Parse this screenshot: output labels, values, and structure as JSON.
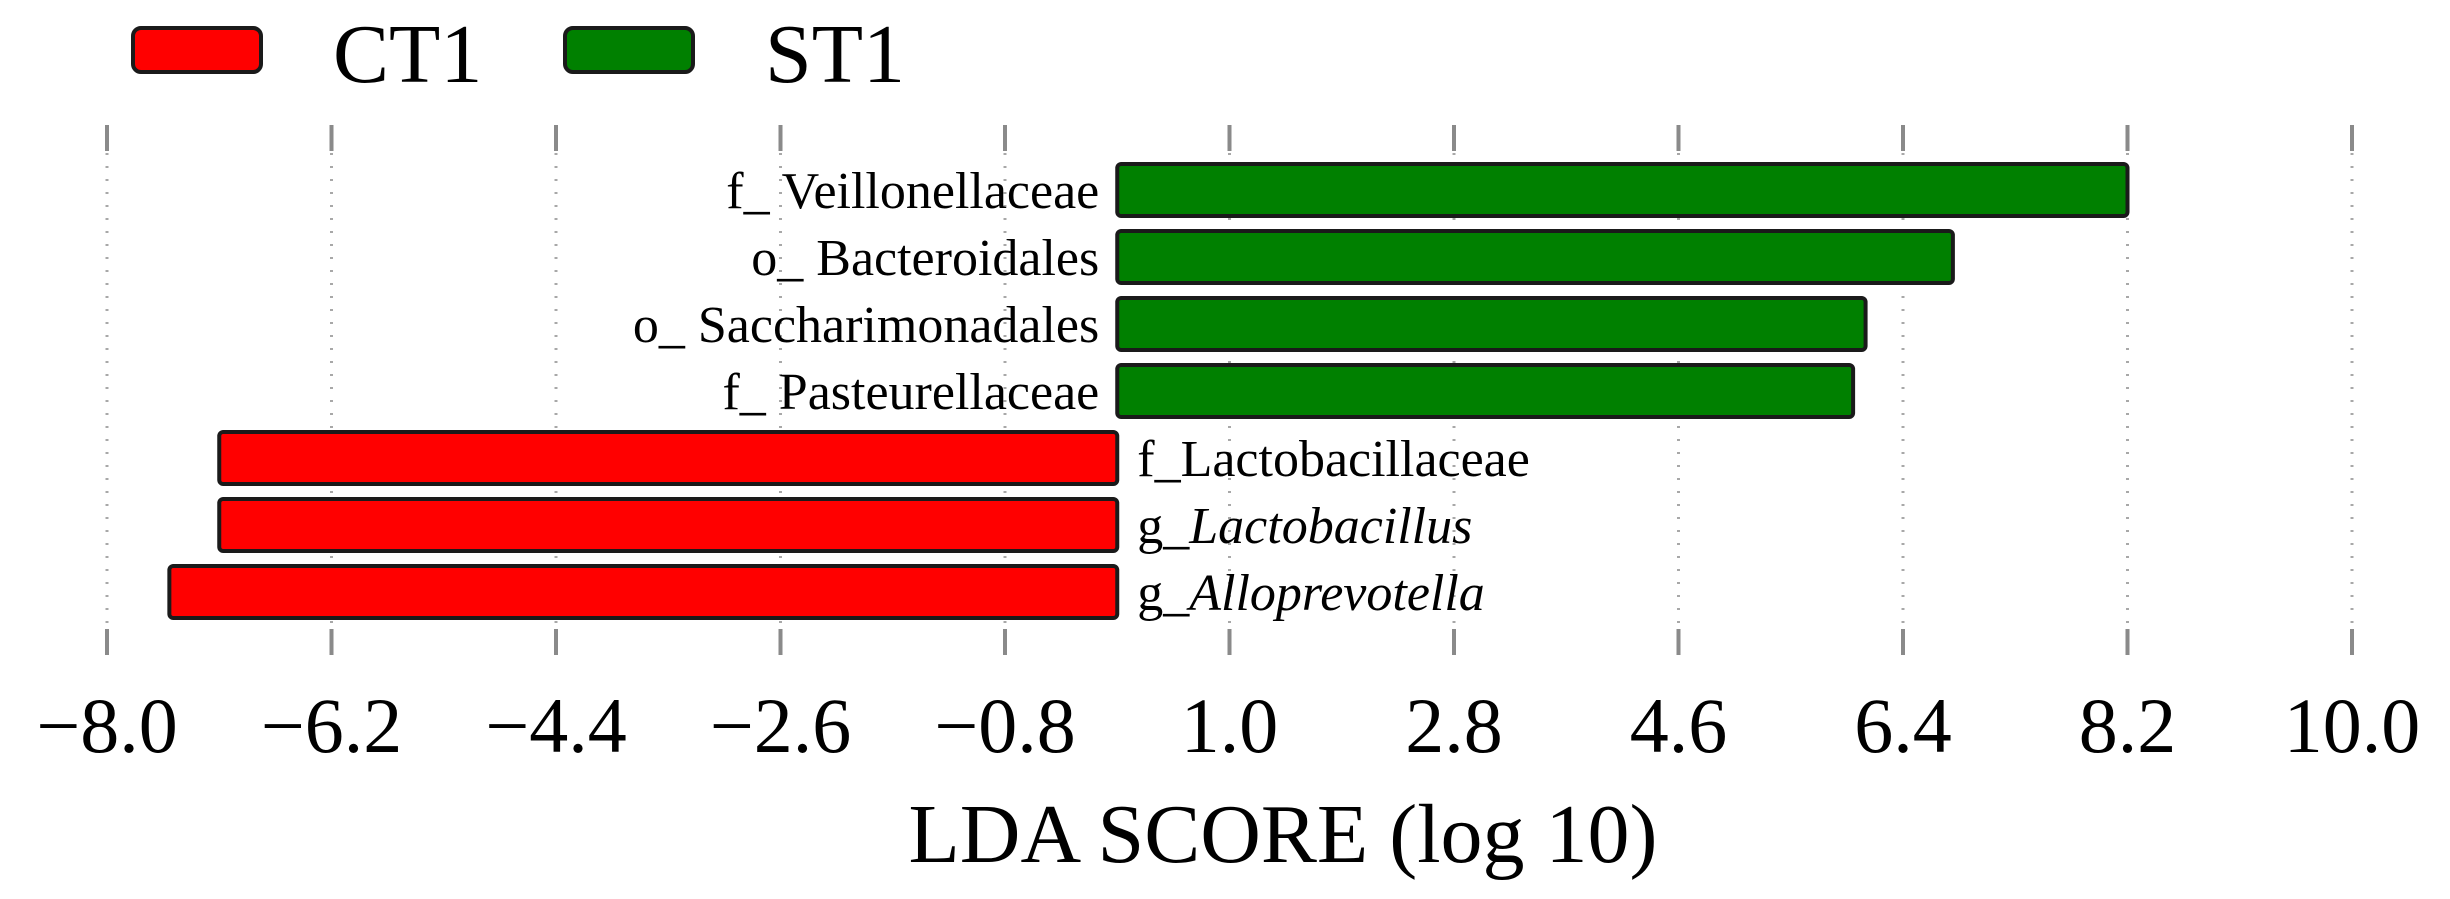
{
  "chart_data": {
    "type": "bar",
    "orientation": "horizontal",
    "xlabel": "LDA SCORE (log 10)",
    "xlim": [
      -8.0,
      10.0
    ],
    "xticks": [
      "−8.0",
      "−6.2",
      "−4.4",
      "−2.6",
      "−0.8",
      "1.0",
      "2.8",
      "4.6",
      "6.4",
      "8.2",
      "10.0"
    ],
    "xtick_values": [
      -8.0,
      -6.2,
      -4.4,
      -2.6,
      -0.8,
      1.0,
      2.8,
      4.6,
      6.4,
      8.2,
      10.0
    ],
    "baseline": 0.1,
    "grid": true,
    "legend": {
      "placement": "top-left",
      "entries": [
        {
          "label": "CT1",
          "color": "#ff0000"
        },
        {
          "label": "ST1",
          "color": "#008000"
        }
      ]
    },
    "bars": [
      {
        "label": "f_ Veillonellaceae",
        "value": 8.2,
        "group": "ST1",
        "italic": false
      },
      {
        "label": "o_ Bacteroidales",
        "value": 6.8,
        "group": "ST1",
        "italic": false
      },
      {
        "label": "o_ Saccharimonadales",
        "value": 6.1,
        "group": "ST1",
        "italic": false
      },
      {
        "label": "f_ Pasteurellaceae",
        "value": 6.0,
        "group": "ST1",
        "italic": false
      },
      {
        "label": "f_Lactobacillaceae",
        "value": -7.1,
        "group": "CT1",
        "italic": false
      },
      {
        "label": "g_Lactobacillus",
        "value": -7.1,
        "group": "CT1",
        "italic": true
      },
      {
        "label": "g_Alloprevotella",
        "value": -7.5,
        "group": "CT1",
        "italic": true
      }
    ]
  }
}
